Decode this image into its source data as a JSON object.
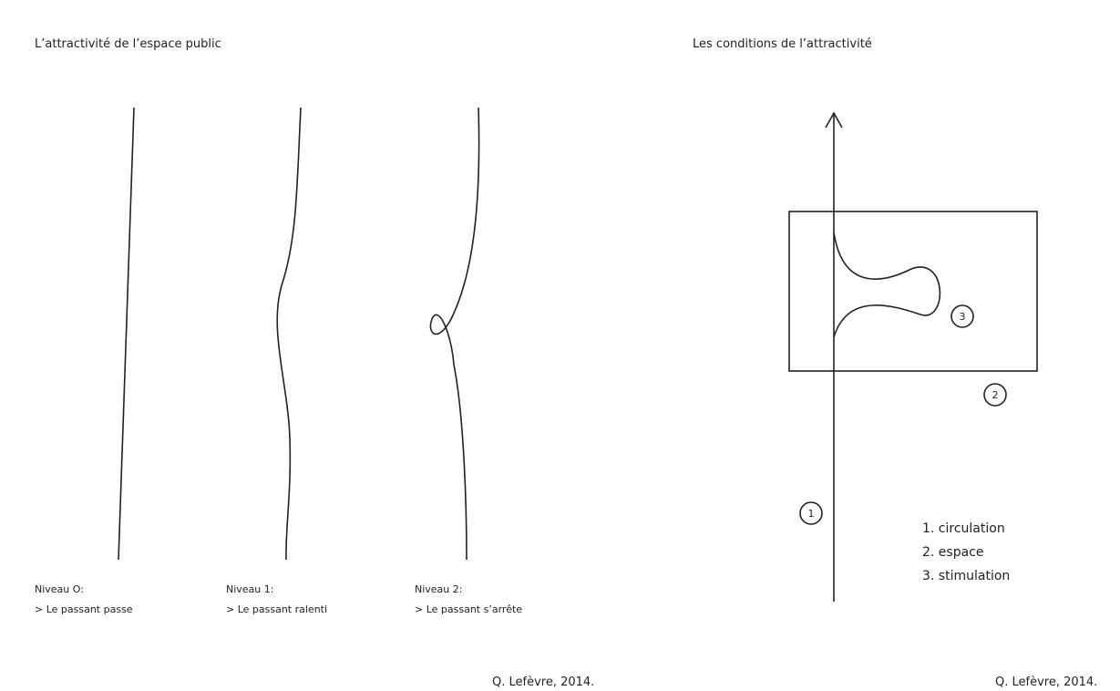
{
  "left": {
    "title": "L’attractivité de l’espace public",
    "levels": [
      {
        "label": "Niveau O:",
        "desc": "> Le passant passe"
      },
      {
        "label": "Niveau 1:",
        "desc": "> Le passant ralenti"
      },
      {
        "label": "Niveau 2:",
        "desc": "> Le passant s’arrête"
      }
    ],
    "credit": "Q. Lefèvre, 2014."
  },
  "right": {
    "title": "Les conditions de l’attractivité",
    "markers": [
      "1",
      "2",
      "3"
    ],
    "legend": [
      "1. circulation",
      "2. espace",
      "3. stimulation"
    ],
    "credit": "Q. Lefèvre, 2014."
  }
}
